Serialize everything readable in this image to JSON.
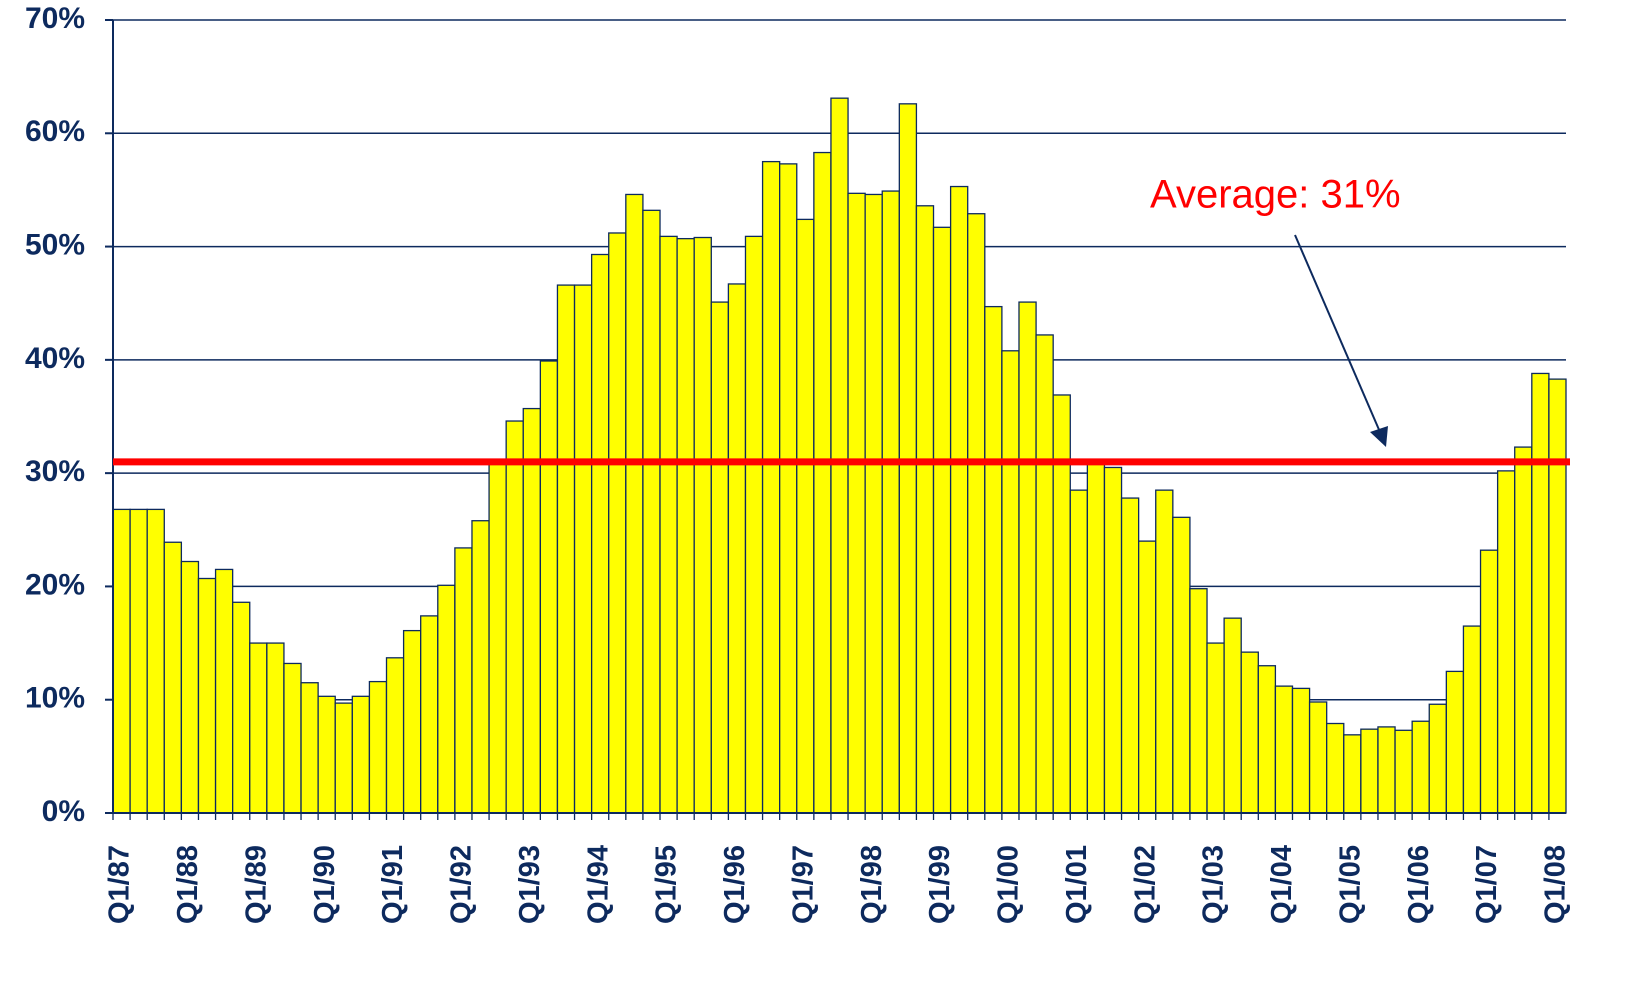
{
  "chart_data": {
    "type": "bar",
    "color": "#ffff00",
    "edge_color": "#0d2a5e",
    "grid": true,
    "ylim": [
      0,
      70
    ],
    "yticks": [
      {
        "value": 0,
        "label": "0%"
      },
      {
        "value": 10,
        "label": "10%"
      },
      {
        "value": 20,
        "label": "20%"
      },
      {
        "value": 30,
        "label": "30%"
      },
      {
        "value": 40,
        "label": "40%"
      },
      {
        "value": 50,
        "label": "50%"
      },
      {
        "value": 60,
        "label": "60%"
      },
      {
        "value": 70,
        "label": "70%"
      }
    ],
    "categories": [
      "Q1/87",
      null,
      null,
      null,
      "Q1/88",
      null,
      null,
      null,
      "Q1/89",
      null,
      null,
      null,
      "Q1/90",
      null,
      null,
      null,
      "Q1/91",
      null,
      null,
      null,
      "Q1/92",
      null,
      null,
      null,
      "Q1/93",
      null,
      null,
      null,
      "Q1/94",
      null,
      null,
      null,
      "Q1/95",
      null,
      null,
      null,
      "Q1/96",
      null,
      null,
      null,
      "Q1/97",
      null,
      null,
      null,
      "Q1/98",
      null,
      null,
      null,
      "Q1/99",
      null,
      null,
      null,
      "Q1/00",
      null,
      null,
      null,
      "Q1/01",
      null,
      null,
      null,
      "Q1/02",
      null,
      null,
      null,
      "Q1/03",
      null,
      null,
      null,
      "Q1/04",
      null,
      null,
      null,
      "Q1/05",
      null,
      null,
      null,
      "Q1/06",
      null,
      null,
      null,
      "Q1/07",
      null,
      null,
      null,
      "Q1/08"
    ],
    "values": [
      26.8,
      26.8,
      26.8,
      23.9,
      22.2,
      20.7,
      21.5,
      18.6,
      15.0,
      15.0,
      13.2,
      11.5,
      10.3,
      9.7,
      10.3,
      11.6,
      13.7,
      16.1,
      17.4,
      20.1,
      23.4,
      25.8,
      30.8,
      34.6,
      35.7,
      39.9,
      46.6,
      46.6,
      49.3,
      51.2,
      54.6,
      53.2,
      50.9,
      50.7,
      50.8,
      45.1,
      46.7,
      50.9,
      57.5,
      57.3,
      52.4,
      58.3,
      63.1,
      54.7,
      54.6,
      54.9,
      62.6,
      53.6,
      51.7,
      55.3,
      52.9,
      44.7,
      40.8,
      45.1,
      42.2,
      36.9,
      28.5,
      31.2,
      30.5,
      27.8,
      24.0,
      28.5,
      26.1,
      19.8,
      15.0,
      17.2,
      14.2,
      13.0,
      11.2,
      11.0,
      9.8,
      7.9,
      6.9,
      7.4,
      7.6,
      7.3,
      8.1,
      9.6,
      12.5,
      16.5,
      23.2,
      30.2,
      32.3,
      38.8,
      38.3
    ],
    "average": {
      "value": 31,
      "label": "Average: 31%",
      "color": "#ff0000"
    }
  }
}
